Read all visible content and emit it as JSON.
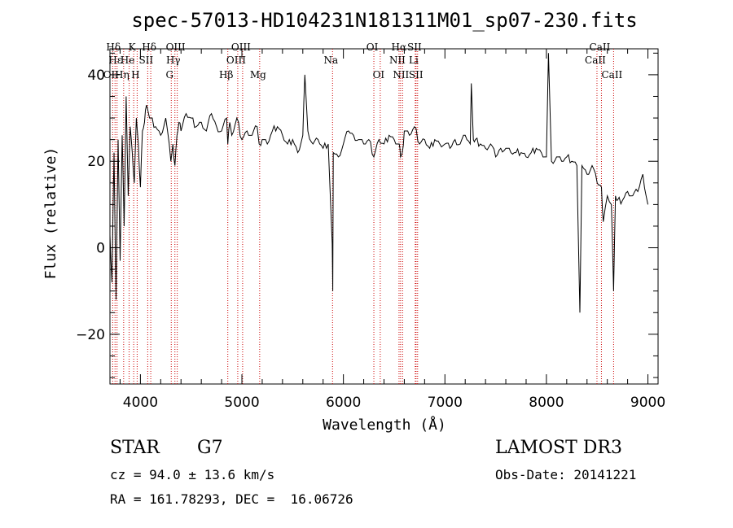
{
  "chart_data": {
    "type": "line",
    "title": "spec-57013-HD104231N181311M01_sp07-230.fits",
    "xlabel": "Wavelength (Å)",
    "ylabel": "Flux (relative)",
    "xlim": [
      3700,
      9100
    ],
    "ylim": [
      -31.5,
      46
    ],
    "x_ticks": [
      4000,
      5000,
      6000,
      7000,
      8000,
      9000
    ],
    "y_ticks": [
      -20,
      0,
      20,
      40
    ],
    "grid": false,
    "series": [
      {
        "name": "flux",
        "x": [
          3700,
          3720,
          3740,
          3760,
          3780,
          3800,
          3820,
          3840,
          3860,
          3880,
          3900,
          3920,
          3940,
          3960,
          3980,
          4000,
          4020,
          4040,
          4060,
          4080,
          4100,
          4150,
          4200,
          4250,
          4300,
          4320,
          4340,
          4360,
          4380,
          4400,
          4450,
          4500,
          4550,
          4600,
          4650,
          4700,
          4750,
          4800,
          4850,
          4861,
          4880,
          4900,
          4950,
          5000,
          5050,
          5100,
          5150,
          5170,
          5200,
          5250,
          5300,
          5350,
          5400,
          5450,
          5500,
          5550,
          5600,
          5620,
          5650,
          5700,
          5750,
          5800,
          5850,
          5890,
          5895,
          5900,
          5950,
          6000,
          6050,
          6100,
          6150,
          6200,
          6250,
          6300,
          6350,
          6400,
          6450,
          6500,
          6550,
          6563,
          6580,
          6600,
          6650,
          6700,
          6750,
          6800,
          6850,
          6900,
          6950,
          7000,
          7050,
          7100,
          7150,
          7200,
          7250,
          7260,
          7280,
          7300,
          7350,
          7400,
          7450,
          7500,
          7550,
          7600,
          7650,
          7700,
          7750,
          7800,
          7850,
          7900,
          7950,
          8000,
          8020,
          8050,
          8100,
          8150,
          8200,
          8250,
          8300,
          8330,
          8350,
          8400,
          8450,
          8500,
          8542,
          8560,
          8600,
          8640,
          8662,
          8680,
          8700,
          8750,
          8800,
          8850,
          8900,
          8950,
          9000
        ],
        "y": [
          3,
          -8,
          22,
          -12,
          25,
          -3,
          26,
          5,
          35,
          12,
          28,
          22,
          15,
          30,
          24,
          14,
          27,
          29,
          33,
          31,
          30,
          28,
          26,
          30,
          20,
          24,
          19,
          26,
          29,
          27,
          31,
          30,
          28,
          29,
          27,
          31,
          28,
          27,
          30,
          24,
          29,
          26,
          30,
          25,
          27,
          26,
          28,
          24,
          25,
          24,
          27,
          28,
          26,
          24,
          25,
          22,
          26,
          40,
          27,
          24,
          25,
          23,
          24,
          1,
          -10,
          22,
          21,
          24,
          27,
          26,
          25,
          24,
          25,
          21,
          25,
          24,
          26,
          25,
          24,
          21,
          22,
          27,
          26,
          28,
          24,
          25,
          23,
          25,
          24,
          24,
          23,
          25,
          24,
          26,
          24,
          38,
          25,
          25,
          24,
          23,
          24,
          21,
          23,
          23,
          22,
          22,
          22,
          21,
          22,
          23,
          22,
          21,
          45,
          20,
          21,
          20,
          21,
          20,
          19,
          -15,
          19,
          17,
          19,
          15,
          14,
          6,
          12,
          10,
          -10,
          12,
          11,
          11,
          13,
          12,
          13,
          17,
          10
        ]
      }
    ],
    "lines": [
      {
        "label": "Hδ",
        "x": 3750,
        "row": 1
      },
      {
        "label": "OII",
        "x": 3727,
        "row": 3
      },
      {
        "label": "Hε",
        "x": 3770,
        "row": 2
      },
      {
        "label": "Hη",
        "x": 3835,
        "row": 3
      },
      {
        "label": "He",
        "x": 3889,
        "row": 2
      },
      {
        "label": "K",
        "x": 3934,
        "row": 1
      },
      {
        "label": "H",
        "x": 3968,
        "row": 3
      },
      {
        "label": "SII",
        "x": 4072,
        "row": 2
      },
      {
        "label": "Hδ",
        "x": 4102,
        "row": 1
      },
      {
        "label": "G",
        "x": 4304,
        "row": 3
      },
      {
        "label": "Hγ",
        "x": 4340,
        "row": 2
      },
      {
        "label": "OIII",
        "x": 4363,
        "row": 1
      },
      {
        "label": "Hβ",
        "x": 4861,
        "row": 3
      },
      {
        "label": "OIII",
        "x": 4959,
        "row": 2
      },
      {
        "label": "OIII",
        "x": 5007,
        "row": 1
      },
      {
        "label": "Mg",
        "x": 5175,
        "row": 3
      },
      {
        "label": "Na",
        "x": 5893,
        "row": 2
      },
      {
        "label": "OI",
        "x": 6300,
        "row": 1
      },
      {
        "label": "OI",
        "x": 6363,
        "row": 3
      },
      {
        "label": "NII",
        "x": 6548,
        "row": 2
      },
      {
        "label": "Hα",
        "x": 6563,
        "row": 1
      },
      {
        "label": "NII",
        "x": 6583,
        "row": 3
      },
      {
        "label": "SII",
        "x": 6716,
        "row": 1
      },
      {
        "label": "Li",
        "x": 6708,
        "row": 2
      },
      {
        "label": "SII",
        "x": 6731,
        "row": 3
      },
      {
        "label": "CaII",
        "x": 8498,
        "row": 2
      },
      {
        "label": "CaII",
        "x": 8542,
        "row": 1
      },
      {
        "label": "CaII",
        "x": 8662,
        "row": 3
      }
    ]
  },
  "info": {
    "class": "STAR",
    "subclass": "G7",
    "survey": "LAMOST DR3",
    "cz": "cz = 94.0 ± 13.6 km/s",
    "obs_date": "Obs-Date: 20141221",
    "coords": "RA = 161.78293, DEC =  16.06726"
  }
}
